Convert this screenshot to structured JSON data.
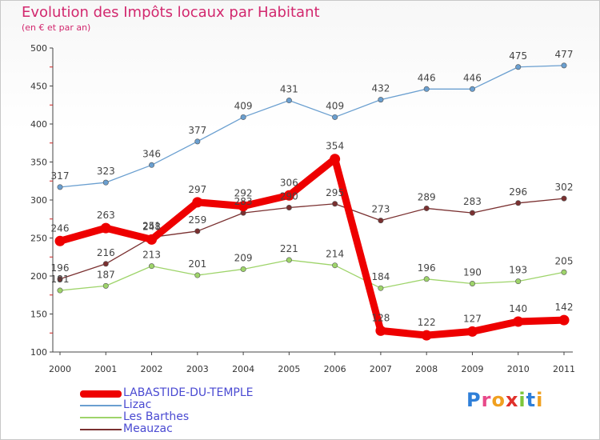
{
  "title": "Evolution des Impôts locaux par Habitant",
  "subtitle": "(en € et par an)",
  "logo": {
    "text": "Proxiti",
    "letters": [
      {
        "ch": "P",
        "color": "#2f7fd8"
      },
      {
        "ch": "r",
        "color": "#e84a8a"
      },
      {
        "ch": "o",
        "color": "#f0a020"
      },
      {
        "ch": "x",
        "color": "#e0302a"
      },
      {
        "ch": "i",
        "color": "#7cc63a"
      },
      {
        "ch": "t",
        "color": "#2f7fd8"
      },
      {
        "ch": "i",
        "color": "#f0a020"
      }
    ]
  },
  "chart_data": {
    "type": "line",
    "title": "Evolution des Impôts locaux par Habitant",
    "subtitle": "(en € et par an)",
    "x": [
      "2000",
      "2001",
      "2002",
      "2003",
      "2004",
      "2005",
      "2006",
      "2007",
      "2008",
      "2009",
      "2010",
      "2011"
    ],
    "ylim": [
      100,
      500
    ],
    "yticks": [
      100,
      150,
      200,
      250,
      300,
      350,
      400,
      450,
      500
    ],
    "grid": false,
    "legend_position": "bottom-left",
    "series": [
      {
        "name": "LABASTIDE-DU-TEMPLE",
        "color": "#ee0000",
        "values": [
          246,
          263,
          248,
          297,
          292,
          306,
          354,
          128,
          122,
          127,
          140,
          142
        ]
      },
      {
        "name": "Lizac",
        "color": "#6a9fd0",
        "values": [
          317,
          323,
          346,
          377,
          409,
          431,
          409,
          432,
          446,
          446,
          475,
          477
        ]
      },
      {
        "name": "Les Barthes",
        "color": "#9ed46a",
        "values": [
          181,
          187,
          213,
          201,
          209,
          221,
          214,
          184,
          196,
          190,
          193,
          205
        ]
      },
      {
        "name": "Meauzac",
        "color": "#7a3030",
        "values": [
          196,
          216,
          251,
          259,
          283,
          290,
          295,
          273,
          289,
          283,
          296,
          302
        ]
      }
    ]
  }
}
